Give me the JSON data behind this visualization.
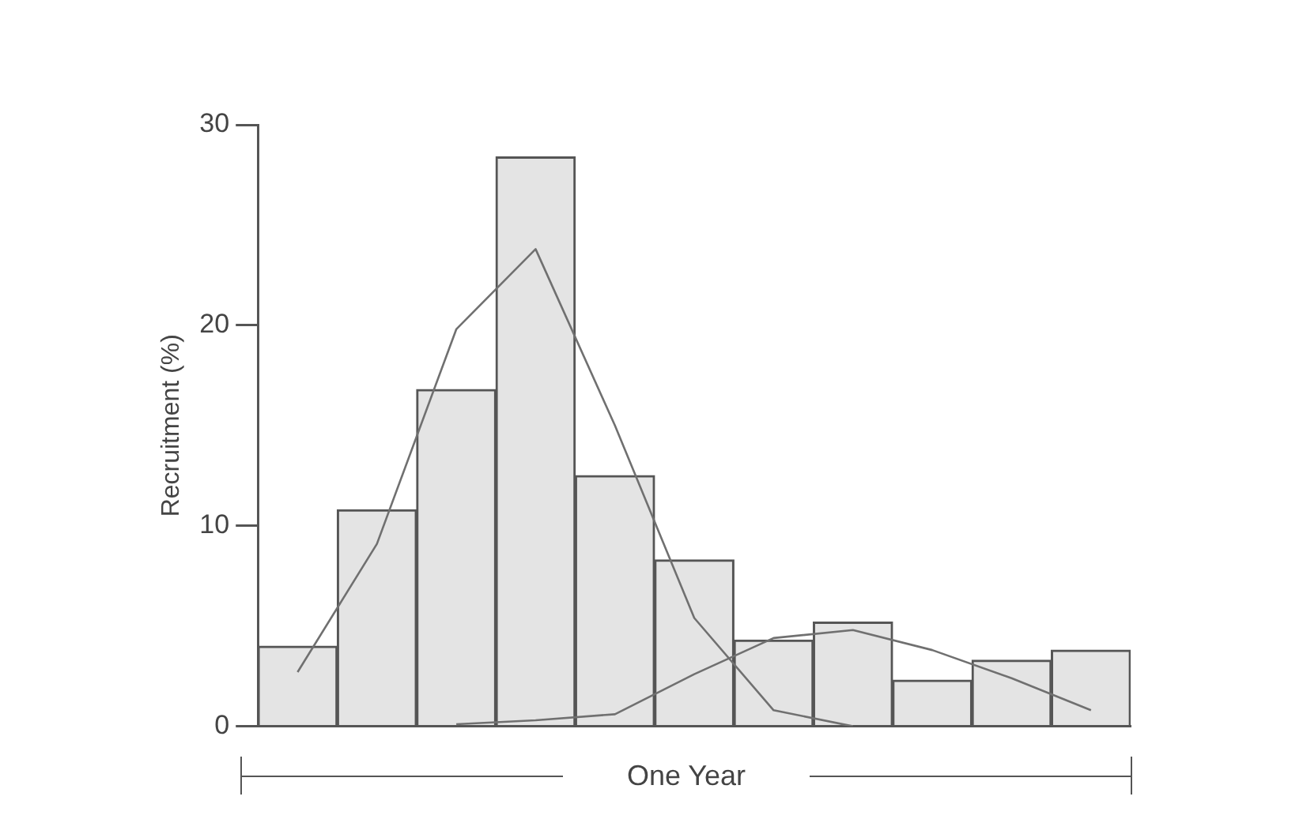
{
  "chart_data": {
    "type": "bar",
    "xlabel": "One Year",
    "ylabel": "Recruitment (%)",
    "categories": [
      null,
      null,
      null,
      null,
      null,
      null,
      null,
      null,
      null,
      null,
      null
    ],
    "series": [
      {
        "color": "#e4e4e4",
        "values": [
          4.0,
          10.8,
          16.8,
          28.4,
          12.5,
          8.3,
          4.3,
          5.2,
          2.3,
          3.3,
          3.8
        ]
      },
      {
        "type": "line",
        "color": "#707070",
        "values": [
          2.7,
          9.1,
          19.8,
          23.8,
          15.0,
          5.4,
          0.8,
          0,
          null,
          null,
          null
        ]
      },
      {
        "type": "line",
        "color": "#707070",
        "values": [
          null,
          null,
          0.1,
          0.3,
          0.6,
          2.6,
          4.4,
          4.8,
          3.8,
          2.4,
          0.8
        ]
      }
    ],
    "ylim": [
      0,
      30
    ],
    "yticks": [
      0,
      10,
      20,
      30
    ],
    "tick_labels": "y",
    "grid": false,
    "legend": false,
    "marker": "none"
  }
}
